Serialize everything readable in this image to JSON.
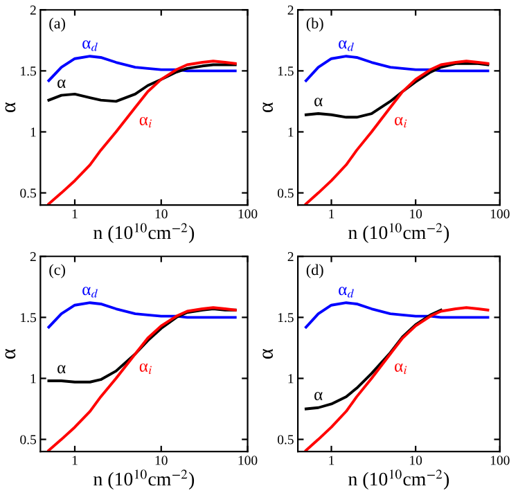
{
  "chart_data": [
    {
      "type": "line",
      "xlabel": "n (10$^{10}$cm$^{−2}$)",
      "ylabel": "α",
      "log": "x",
      "xlim": [
        0.4,
        100
      ],
      "ylim": [
        0.4,
        2
      ],
      "xticks": [
        1,
        10,
        100
      ],
      "yticks": [
        0.5,
        1,
        1.5,
        2
      ],
      "grid": false,
      "legend": false,
      "annotations": [
        "(a)"
      ],
      "x": [
        0.5,
        0.7,
        1,
        1.5,
        2,
        3,
        5,
        7,
        10,
        15,
        20,
        30,
        40,
        55,
        72
      ],
      "series": [
        {
          "name": "α$_{d}$",
          "color": "#0000ff",
          "values": [
            1.42,
            1.53,
            1.6,
            1.62,
            1.61,
            1.57,
            1.53,
            1.52,
            1.51,
            1.51,
            1.5,
            1.5,
            1.5,
            1.5,
            1.5
          ]
        },
        {
          "name": "α",
          "color": "#000000",
          "values": [
            1.26,
            1.3,
            1.31,
            1.28,
            1.26,
            1.25,
            1.31,
            1.38,
            1.43,
            1.49,
            1.52,
            1.54,
            1.55,
            1.55,
            1.55
          ]
        },
        {
          "name": "α$_{i}$",
          "color": "#ff0000",
          "values": [
            0.41,
            0.5,
            0.6,
            0.73,
            0.85,
            1.0,
            1.2,
            1.33,
            1.43,
            1.51,
            1.55,
            1.57,
            1.58,
            1.57,
            1.56
          ]
        }
      ]
    },
    {
      "type": "line",
      "xlabel": "n (10$^{10}$cm$^{−2}$)",
      "ylabel": "α",
      "log": "x",
      "xlim": [
        0.4,
        100
      ],
      "ylim": [
        0.4,
        2
      ],
      "xticks": [
        1,
        10,
        100
      ],
      "yticks": [
        0.5,
        1,
        1.5,
        2
      ],
      "grid": false,
      "legend": false,
      "annotations": [
        "(b)"
      ],
      "x": [
        0.5,
        0.7,
        1,
        1.5,
        2,
        3,
        5,
        7,
        10,
        15,
        20,
        30,
        40,
        55,
        72
      ],
      "series": [
        {
          "name": "α$_{d}$",
          "color": "#0000ff",
          "values": [
            1.42,
            1.53,
            1.6,
            1.62,
            1.61,
            1.57,
            1.53,
            1.52,
            1.51,
            1.51,
            1.5,
            1.5,
            1.5,
            1.5,
            1.5
          ]
        },
        {
          "name": "α",
          "color": "#000000",
          "values": [
            1.14,
            1.15,
            1.14,
            1.12,
            1.12,
            1.15,
            1.25,
            1.33,
            1.41,
            1.49,
            1.53,
            1.56,
            1.56,
            1.56,
            1.55
          ]
        },
        {
          "name": "α$_{i}$",
          "color": "#ff0000",
          "values": [
            0.41,
            0.5,
            0.6,
            0.73,
            0.85,
            1.0,
            1.2,
            1.33,
            1.43,
            1.51,
            1.55,
            1.57,
            1.58,
            1.57,
            1.56
          ]
        }
      ]
    },
    {
      "type": "line",
      "xlabel": "n (10$^{10}$cm$^{−2}$)",
      "ylabel": "α",
      "log": "x",
      "xlim": [
        0.4,
        100
      ],
      "ylim": [
        0.4,
        2
      ],
      "xticks": [
        1,
        10,
        100
      ],
      "yticks": [
        0.5,
        1,
        1.5,
        2
      ],
      "grid": false,
      "legend": false,
      "annotations": [
        "(c)"
      ],
      "x": [
        0.5,
        0.7,
        1,
        1.5,
        2,
        3,
        5,
        7,
        10,
        15,
        20,
        30,
        40,
        55,
        72
      ],
      "series": [
        {
          "name": "α$_{d}$",
          "color": "#0000ff",
          "values": [
            1.42,
            1.53,
            1.6,
            1.62,
            1.61,
            1.57,
            1.53,
            1.52,
            1.51,
            1.51,
            1.5,
            1.5,
            1.5,
            1.5,
            1.5
          ]
        },
        {
          "name": "α",
          "color": "#000000",
          "values": [
            0.98,
            0.98,
            0.97,
            0.97,
            0.99,
            1.06,
            1.2,
            1.31,
            1.41,
            1.5,
            1.54,
            1.56,
            1.57,
            1.56,
            1.56
          ]
        },
        {
          "name": "α$_{i}$",
          "color": "#ff0000",
          "values": [
            0.41,
            0.5,
            0.6,
            0.73,
            0.85,
            1.0,
            1.2,
            1.33,
            1.43,
            1.51,
            1.55,
            1.57,
            1.58,
            1.57,
            1.56
          ]
        }
      ]
    },
    {
      "type": "line",
      "xlabel": "n (10$^{10}$cm$^{−2}$)",
      "ylabel": "α",
      "log": "x",
      "xlim": [
        0.4,
        100
      ],
      "ylim": [
        0.4,
        2
      ],
      "xticks": [
        1,
        10,
        100
      ],
      "yticks": [
        0.5,
        1,
        1.5,
        2
      ],
      "grid": false,
      "legend": false,
      "annotations": [
        "(d)"
      ],
      "x": [
        0.5,
        0.7,
        1,
        1.5,
        2,
        3,
        5,
        7,
        10,
        15,
        20,
        30,
        40,
        55,
        72
      ],
      "series": [
        {
          "name": "α$_{d}$",
          "color": "#0000ff",
          "values": [
            1.42,
            1.53,
            1.6,
            1.62,
            1.61,
            1.57,
            1.53,
            1.52,
            1.51,
            1.51,
            1.5,
            1.5,
            1.5,
            1.5,
            1.5
          ]
        },
        {
          "name": "α",
          "color": "#000000",
          "values": [
            0.75,
            0.76,
            0.79,
            0.85,
            0.92,
            1.04,
            1.21,
            1.34,
            1.44,
            1.52,
            1.56,
            null,
            null,
            null,
            null
          ]
        },
        {
          "name": "α$_{i}$",
          "color": "#ff0000",
          "values": [
            0.41,
            0.5,
            0.6,
            0.73,
            0.85,
            1.0,
            1.2,
            1.33,
            1.43,
            1.51,
            1.55,
            1.57,
            1.58,
            1.57,
            1.56
          ]
        }
      ]
    }
  ]
}
